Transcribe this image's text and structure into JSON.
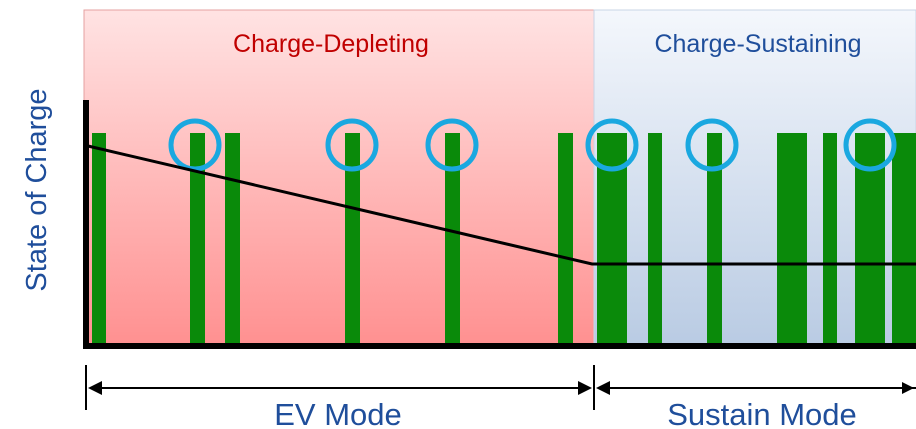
{
  "diagram": {
    "regions": [
      {
        "label": "Charge-Depleting",
        "color": "#c00000"
      },
      {
        "label": "Charge-Sustaining",
        "color": "#1f4e9b"
      }
    ],
    "ylabel": "State of Charge",
    "modes": [
      {
        "label": "EV Mode"
      },
      {
        "label": "Sustain Mode"
      }
    ],
    "colors": {
      "cd_fill_top": "#ffe3e3",
      "cd_fill_bottom": "#ff9090",
      "cs_fill_top": "#f4f7fc",
      "cs_fill_bottom": "#b9cbe3",
      "bar": "#0a8a0a",
      "circle": "#1aa8e0",
      "axis": "#000000",
      "ylabel": "#1f4e9b",
      "mode_text": "#1f4e9b"
    }
  }
}
